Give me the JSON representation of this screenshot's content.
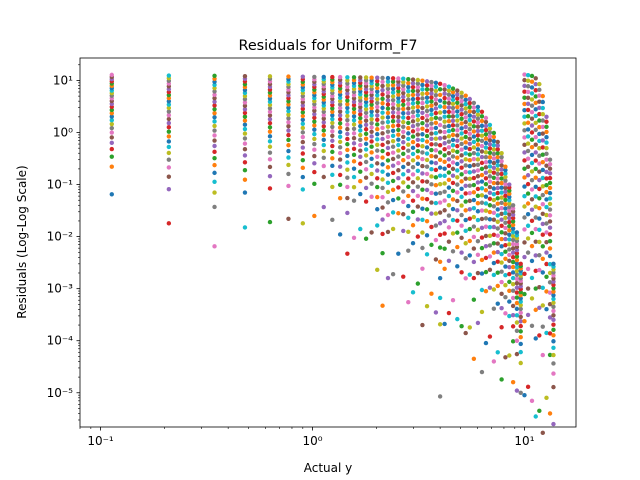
{
  "chart_data": {
    "type": "scatter",
    "title": "Residuals for Uniform_F7",
    "xlabel": "Actual y",
    "ylabel": "Residuals (Log-Log Scale)",
    "xscale": "log",
    "yscale": "log",
    "xlim": [
      0.08,
      17.5
    ],
    "ylim": [
      2.2e-06,
      27
    ],
    "grid": false,
    "legend": "none",
    "xticks": [
      {
        "value": 0.1,
        "label": "10⁻¹"
      },
      {
        "value": 1,
        "label": "10⁰"
      },
      {
        "value": 10,
        "label": "10¹"
      }
    ],
    "yticks": [
      {
        "value": 1e-05,
        "label": "10⁻⁵"
      },
      {
        "value": 0.0001,
        "label": "10⁻⁴"
      },
      {
        "value": 0.001,
        "label": "10⁻³"
      },
      {
        "value": 0.01,
        "label": "10⁻²"
      },
      {
        "value": 0.1,
        "label": "10⁻¹"
      },
      {
        "value": 1,
        "label": "10⁰"
      },
      {
        "value": 10,
        "label": "10¹"
      }
    ],
    "series_colors": [
      "#1f77b4",
      "#ff7f0e",
      "#2ca02c",
      "#d62728",
      "#9467bd",
      "#8c564b",
      "#e377c2",
      "#7f7f7f",
      "#bcbd22",
      "#17becf"
    ],
    "x": [
      0.113,
      0.21,
      0.345,
      0.48,
      0.63,
      0.77,
      0.9,
      1.02,
      1.13,
      1.24,
      1.35,
      1.46,
      1.57,
      1.68,
      1.79,
      1.9,
      2.02,
      2.14,
      2.27,
      2.4,
      2.54,
      2.68,
      2.83,
      2.98,
      3.14,
      3.3,
      3.47,
      3.64,
      3.82,
      4.0,
      4.2,
      4.4,
      4.6,
      4.82,
      5.05,
      5.28,
      5.52,
      5.77,
      6.03,
      6.3,
      6.58,
      6.87,
      7.17,
      7.48,
      7.8,
      8.13,
      8.48,
      8.84,
      9.21,
      9.6,
      10.0,
      10.4,
      10.85,
      11.3,
      11.75,
      12.2,
      12.7,
      13.2,
      13.7
    ],
    "y_top": [
      12.8,
      12.4,
      12.3,
      12.1,
      12.0,
      11.9,
      11.8,
      11.7,
      11.7,
      11.6,
      11.6,
      11.5,
      11.5,
      11.4,
      11.4,
      11.3,
      11.3,
      11.2,
      11.1,
      11.0,
      10.9,
      10.8,
      10.6,
      10.4,
      10.2,
      9.9,
      9.6,
      9.3,
      9.0,
      8.6,
      8.1,
      7.6,
      7.0,
      6.4,
      5.8,
      5.1,
      4.4,
      3.7,
      3.1,
      2.5,
      1.9,
      1.4,
      0.98,
      0.66,
      0.4,
      0.22,
      0.1,
      0.04,
      0.012,
      0.003,
      13.0,
      12.6,
      12.2,
      11.0,
      8.5,
      5.0,
      2.0,
      0.3,
      0.003
    ],
    "y_bottom": [
      0.065,
      0.018,
      0.0065,
      0.015,
      0.019,
      0.022,
      0.018,
      0.025,
      0.037,
      0.021,
      0.011,
      0.0047,
      0.0095,
      0.014,
      0.0091,
      0.012,
      0.0023,
      0.00047,
      0.0016,
      0.0019,
      0.0047,
      0.0017,
      0.00055,
      0.00085,
      0.00125,
      0.0002,
      0.00046,
      0.0008,
      0.00035,
      8.5e-06,
      0.00021,
      0.00034,
      0.0006,
      0.00026,
      0.00019,
      0.00014,
      0.00018,
      4.5e-05,
      0.00022,
      2.5e-05,
      9e-05,
      0.00012,
      4e-05,
      6e-05,
      1.8e-05,
      4.8e-05,
      5.2e-05,
      1.6e-05,
      1.1e-05,
      1e-05,
      9e-06,
      1.3e-05,
      7e-06,
      3.5e-06,
      4.5e-06,
      1.7e-06,
      8e-06,
      4e-06,
      2.5e-06
    ]
  }
}
